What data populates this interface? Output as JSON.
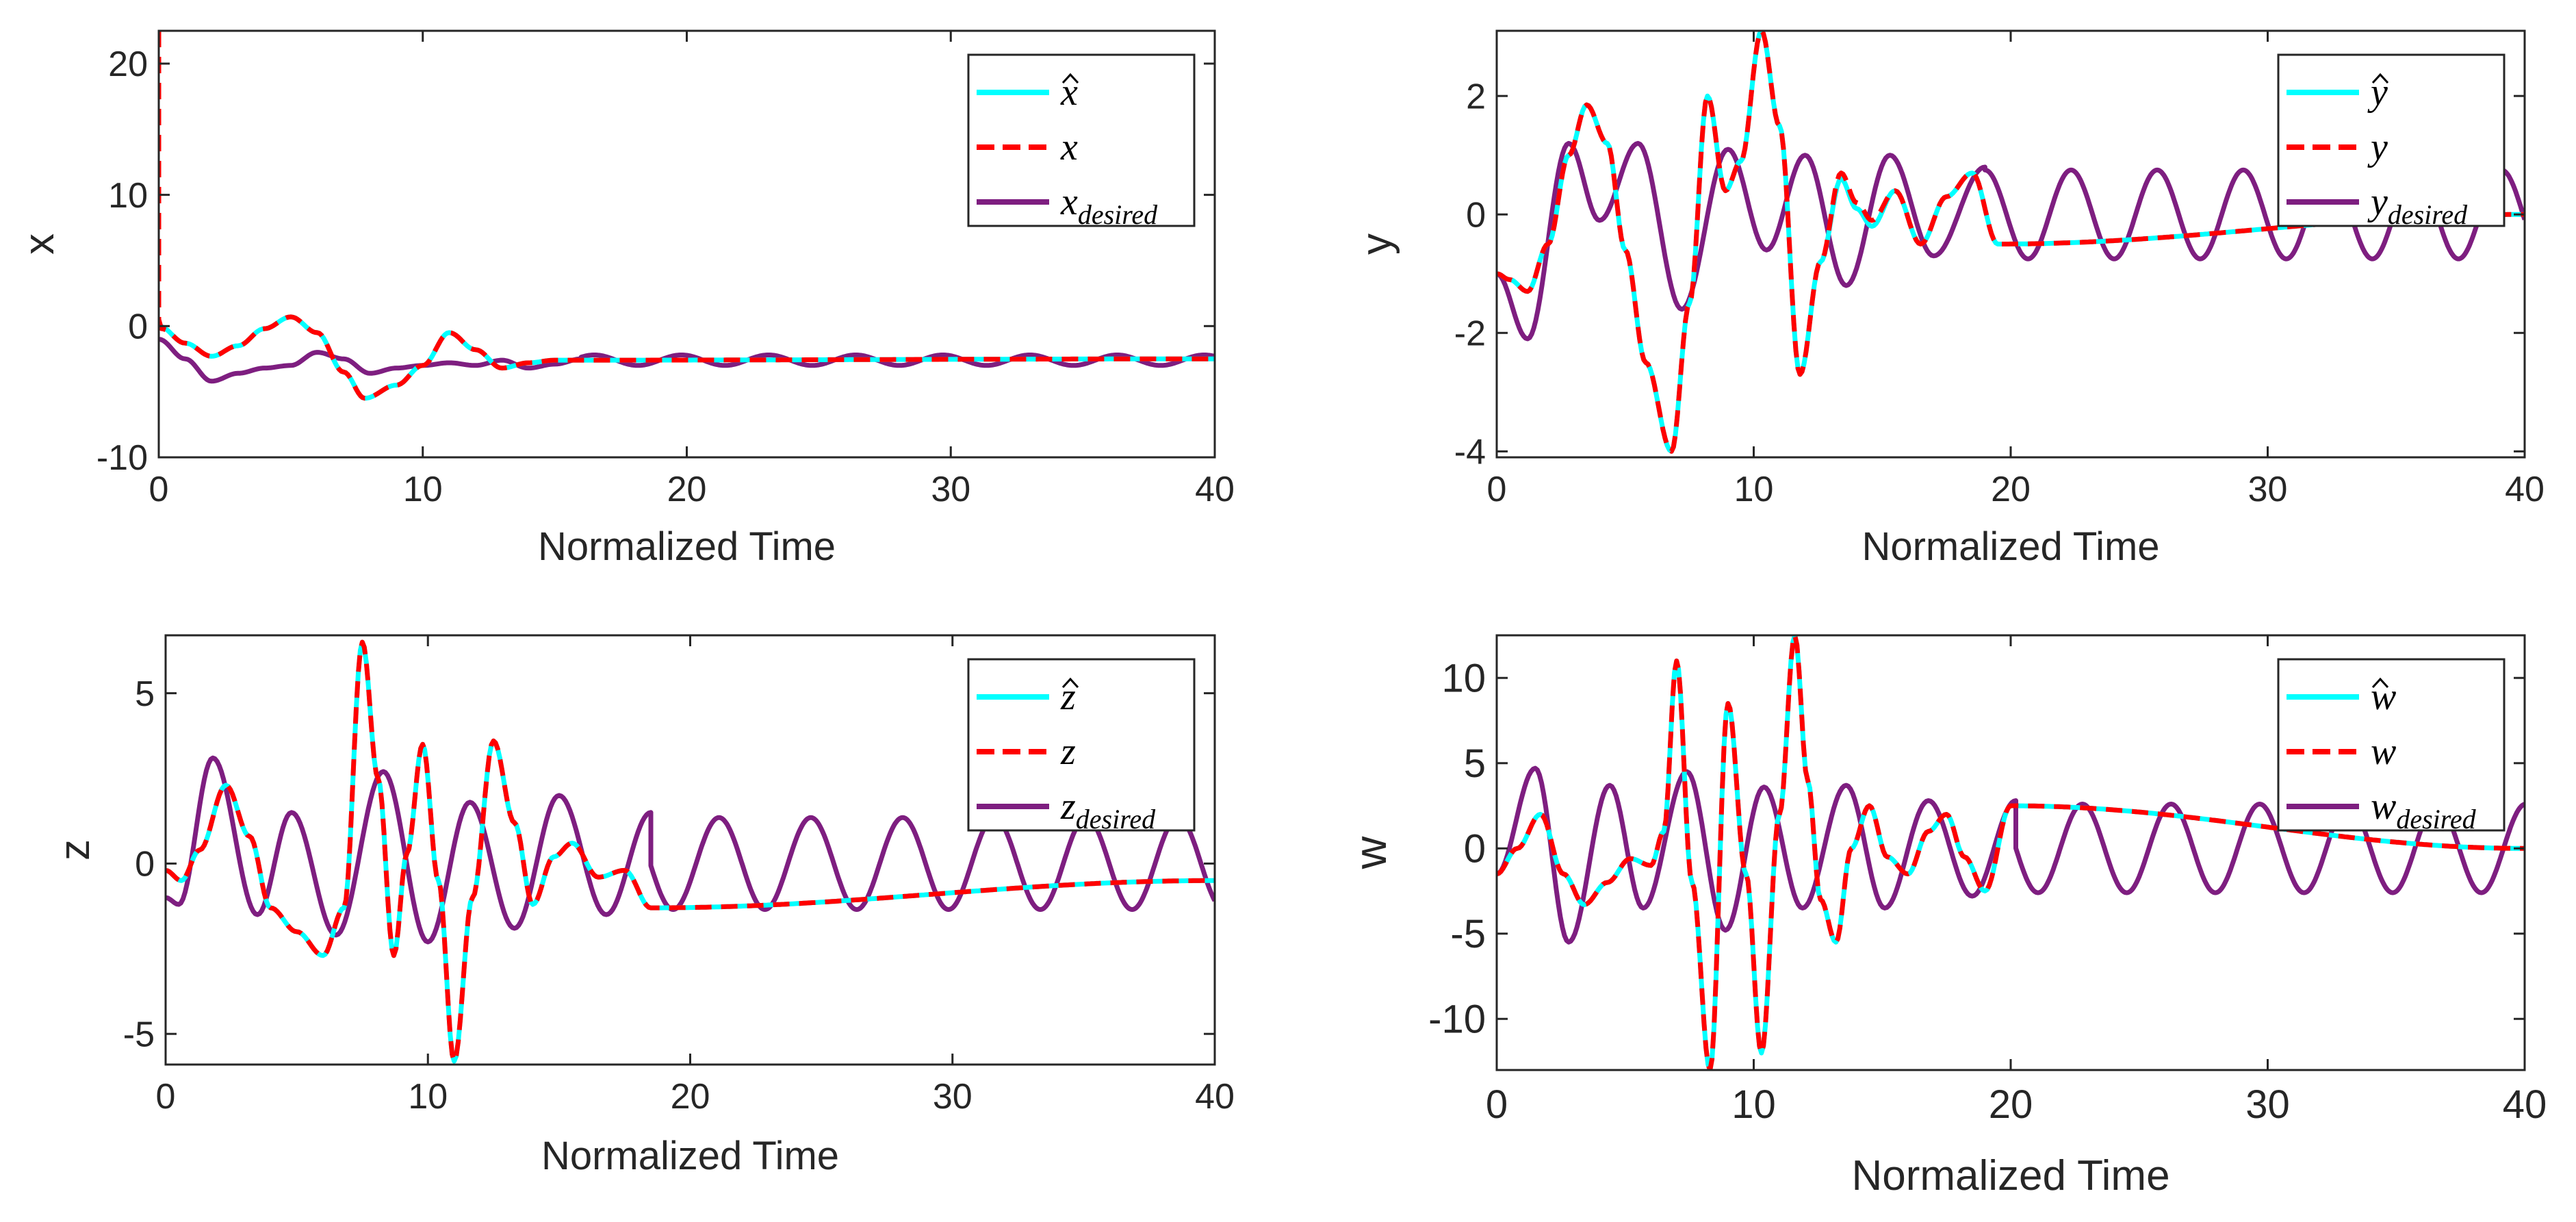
{
  "figure": {
    "colors": {
      "estimate": "#00FFFF",
      "actual": "#FF0000",
      "desired": "#7E1E80",
      "axis": "#262626"
    }
  },
  "chart_data": [
    {
      "id": "x",
      "type": "line",
      "xlabel": "Normalized Time",
      "ylabel": "x",
      "xlim": [
        0,
        40
      ],
      "ylim": [
        -10,
        22.5
      ],
      "xticks": [
        "0",
        "10",
        "20",
        "30",
        "40"
      ],
      "xtick_values": [
        0,
        10,
        20,
        30,
        40
      ],
      "yticks": [
        "-10",
        "0",
        "10",
        "20"
      ],
      "ytick_values": [
        -10,
        0,
        10,
        20
      ],
      "legend": [
        {
          "base": "x",
          "sub": "",
          "hat": true,
          "style": "estimate"
        },
        {
          "base": "x",
          "sub": "",
          "hat": false,
          "style": "actual"
        },
        {
          "base": "x",
          "sub": "desired",
          "hat": false,
          "style": "desired"
        }
      ],
      "legend_location": "top-right",
      "series": [
        {
          "name": "x estimate",
          "style": "estimate",
          "x": [
            0,
            1,
            2,
            3,
            4,
            5,
            6,
            7,
            7.8,
            9,
            10,
            11,
            12,
            13,
            14,
            15,
            40
          ],
          "y": [
            0,
            -1.3,
            -2.3,
            -1.5,
            -0.2,
            0.7,
            -0.5,
            -3.5,
            -5.5,
            -4.5,
            -3,
            -0.5,
            -1.8,
            -3.2,
            -2.8,
            -2.6,
            -2.5
          ]
        },
        {
          "name": "x actual",
          "style": "actual",
          "x": [
            0,
            0,
            0.1,
            1,
            2,
            3,
            4,
            5,
            6,
            7,
            7.8,
            9,
            10,
            11,
            12,
            13,
            14,
            15,
            40
          ],
          "y": [
            22.5,
            0.5,
            -0.2,
            -1.3,
            -2.3,
            -1.5,
            -0.2,
            0.7,
            -0.5,
            -3.5,
            -5.5,
            -4.5,
            -3,
            -0.5,
            -1.8,
            -3.2,
            -2.8,
            -2.6,
            -2.5
          ]
        },
        {
          "name": "x desired",
          "style": "desired",
          "x": [
            0,
            1,
            2,
            3,
            4,
            5,
            6,
            7,
            8,
            9,
            10,
            11,
            12,
            13,
            14,
            15,
            16,
            40
          ],
          "y": [
            -1,
            -2.5,
            -4.2,
            -3.6,
            -3.2,
            -3,
            -2,
            -2.5,
            -3.6,
            -3.2,
            -3,
            -2.8,
            -3,
            -2.6,
            -3.2,
            -2.9,
            -2.5,
            -2.5
          ],
          "oscillation": {
            "start": 16,
            "end": 40,
            "center": -2.6,
            "amplitude": 0.4,
            "period": 3.3,
            "phase": 0
          }
        }
      ]
    },
    {
      "id": "y",
      "type": "line",
      "xlabel": "Normalized Time",
      "ylabel": "y",
      "xlim": [
        0,
        40
      ],
      "ylim": [
        -4.1,
        3.1
      ],
      "xticks": [
        "0",
        "10",
        "20",
        "30",
        "40"
      ],
      "xtick_values": [
        0,
        10,
        20,
        30,
        40
      ],
      "yticks": [
        "-4",
        "-2",
        "0",
        "2"
      ],
      "ytick_values": [
        -4,
        -2,
        0,
        2
      ],
      "legend": [
        {
          "base": "y",
          "sub": "",
          "hat": true,
          "style": "estimate"
        },
        {
          "base": "y",
          "sub": "",
          "hat": false,
          "style": "actual"
        },
        {
          "base": "y",
          "sub": "desired",
          "hat": false,
          "style": "desired"
        }
      ],
      "legend_location": "top-right",
      "series": [
        {
          "name": "y estimate",
          "style": "estimate",
          "x": [
            0,
            0.5,
            1.2,
            2,
            2.8,
            3.5,
            4.3,
            5,
            5.8,
            6.8,
            7.5,
            8.2,
            8.9,
            9.5,
            10.3,
            11,
            11.8,
            12.6,
            13.4,
            14,
            14.6,
            15.5,
            16.5,
            17.5,
            18.5,
            19.5,
            40
          ],
          "y": [
            -1,
            -1.1,
            -1.3,
            -0.5,
            1,
            1.85,
            1.2,
            -0.6,
            -2.5,
            -4,
            -1.5,
            2.0,
            0.4,
            0.9,
            3.1,
            1.5,
            -2.7,
            -0.8,
            0.6,
            0.1,
            -0.2,
            0.4,
            -0.5,
            0.3,
            0.7,
            -0.5,
            0
          ]
        },
        {
          "name": "y actual",
          "style": "actual",
          "x": [
            0,
            0.5,
            1.2,
            2,
            2.8,
            3.5,
            4.3,
            5,
            5.8,
            6.8,
            7.5,
            8.2,
            8.9,
            9.5,
            10.3,
            11,
            11.8,
            12.6,
            13.4,
            14,
            14.6,
            15.5,
            16.5,
            17.5,
            18.5,
            19.5,
            40
          ],
          "y": [
            -1,
            -1.1,
            -1.3,
            -0.5,
            1,
            1.85,
            1.2,
            -0.6,
            -2.5,
            -4,
            -1.5,
            2.0,
            0.4,
            0.9,
            3.1,
            1.5,
            -2.7,
            -0.8,
            0.7,
            0.2,
            -0.1,
            0.4,
            -0.5,
            0.3,
            0.7,
            -0.5,
            0
          ]
        },
        {
          "name": "y desired",
          "style": "desired",
          "x": [
            0,
            1.2,
            2.8,
            4,
            5.5,
            7.2,
            9,
            10.5,
            12,
            13.6,
            15.3,
            17,
            19
          ],
          "y": [
            -1,
            -2.1,
            1.2,
            -0.1,
            1.2,
            -1.6,
            1.1,
            -0.6,
            1,
            -1.2,
            1,
            -0.7,
            0.8
          ],
          "oscillation": {
            "start": 19,
            "end": 40,
            "center": 0,
            "amplitude": 0.75,
            "period": 3.35,
            "phase": 19
          }
        }
      ]
    },
    {
      "id": "z",
      "type": "line",
      "xlabel": "Normalized Time",
      "ylabel": "z",
      "xlim": [
        0,
        40
      ],
      "ylim": [
        -5.9,
        6.7
      ],
      "xticks": [
        "0",
        "10",
        "20",
        "30",
        "40"
      ],
      "xtick_values": [
        0,
        10,
        20,
        30,
        40
      ],
      "yticks": [
        "-5",
        "0",
        "5"
      ],
      "ytick_values": [
        -5,
        0,
        5
      ],
      "legend": [
        {
          "base": "z",
          "sub": "",
          "hat": true,
          "style": "estimate"
        },
        {
          "base": "z",
          "sub": "",
          "hat": false,
          "style": "actual"
        },
        {
          "base": "z",
          "sub": "desired",
          "hat": false,
          "style": "desired"
        }
      ],
      "legend_location": "top-right",
      "series": [
        {
          "name": "z estimate",
          "style": "estimate",
          "x": [
            0,
            0.6,
            1.3,
            2.3,
            3.2,
            4,
            5,
            6,
            6.8,
            7.5,
            8.1,
            8.7,
            9.2,
            9.8,
            10.4,
            11,
            11.7,
            12.5,
            13.3,
            14,
            14.8,
            15.5,
            16.5,
            17.5,
            18.5,
            40
          ],
          "y": [
            -0.2,
            -0.5,
            0.4,
            2.3,
            0.8,
            -1.3,
            -2,
            -2.7,
            -1.3,
            6.5,
            2.5,
            -2.7,
            0.3,
            3.5,
            -0.5,
            -5.8,
            -1,
            3.6,
            1.2,
            -1.2,
            0.2,
            0.6,
            -0.4,
            -0.2,
            -1.3,
            -0.5
          ]
        },
        {
          "name": "z actual",
          "style": "actual",
          "x": [
            0,
            0.6,
            1.3,
            2.3,
            3.2,
            4,
            5,
            6,
            6.8,
            7.5,
            8.1,
            8.7,
            9.2,
            9.8,
            10.4,
            11,
            11.7,
            12.5,
            13.3,
            14,
            14.8,
            15.5,
            16.5,
            17.5,
            18.5,
            40
          ],
          "y": [
            -0.2,
            -0.5,
            0.4,
            2.3,
            0.8,
            -1.3,
            -2,
            -2.7,
            -1.3,
            6.5,
            2.5,
            -2.7,
            0.3,
            3.5,
            -0.5,
            -5.8,
            -1,
            3.6,
            1.2,
            -1.2,
            0.2,
            0.6,
            -0.4,
            -0.2,
            -1.3,
            -0.5
          ]
        },
        {
          "name": "z desired",
          "style": "desired",
          "x": [
            0,
            0.5,
            1.8,
            3.5,
            4.8,
            6.5,
            8.3,
            10,
            11.6,
            13.3,
            15,
            16.8,
            18.5
          ],
          "y": [
            -1,
            -1.2,
            3.1,
            -1.5,
            1.5,
            -2.1,
            2.7,
            -2.3,
            1.8,
            -1.9,
            2.0,
            -1.5,
            1.5
          ],
          "oscillation": {
            "start": 18.5,
            "end": 40,
            "center": 0,
            "amplitude": 1.35,
            "period": 3.5,
            "phase": 17.6
          }
        }
      ]
    },
    {
      "id": "w",
      "type": "line",
      "xlabel": "Normalized Time",
      "ylabel": "w",
      "xlim": [
        0,
        40
      ],
      "ylim": [
        -13,
        12.5
      ],
      "xticks": [
        "0",
        "10",
        "20",
        "30",
        "40"
      ],
      "xtick_values": [
        0,
        10,
        20,
        30,
        40
      ],
      "yticks": [
        "-10",
        "-5",
        "0",
        "5",
        "10"
      ],
      "ytick_values": [
        -10,
        -5,
        0,
        5,
        10
      ],
      "legend": [
        {
          "base": "w",
          "sub": "",
          "hat": true,
          "style": "estimate"
        },
        {
          "base": "w",
          "sub": "",
          "hat": false,
          "style": "actual"
        },
        {
          "base": "w",
          "sub": "desired",
          "hat": false,
          "style": "desired"
        }
      ],
      "legend_location": "top-right",
      "series": [
        {
          "name": "w estimate",
          "style": "estimate",
          "x": [
            0,
            0.8,
            1.7,
            2.6,
            3.4,
            4.3,
            5.2,
            6,
            6.5,
            7,
            7.6,
            8.3,
            9,
            9.7,
            10.3,
            11,
            11.6,
            12.1,
            12.6,
            13.2,
            13.8,
            14.5,
            15.2,
            16,
            16.8,
            17.5,
            18.2,
            19,
            20,
            40
          ],
          "y": [
            -1.5,
            0,
            2,
            -1.5,
            -3.3,
            -2,
            -0.6,
            -1,
            1,
            11,
            -2,
            -13,
            8.5,
            -1.5,
            -12,
            2,
            12.5,
            4,
            -3,
            -5.5,
            0,
            2.5,
            -0.5,
            -1.5,
            1,
            2,
            -0.5,
            -2.5,
            2.5,
            0
          ]
        },
        {
          "name": "w actual",
          "style": "actual",
          "x": [
            0,
            0.8,
            1.7,
            2.6,
            3.4,
            4.3,
            5.2,
            6,
            6.5,
            7,
            7.6,
            8.3,
            9,
            9.7,
            10.3,
            11,
            11.6,
            12.1,
            12.6,
            13.2,
            13.8,
            14.5,
            15.2,
            16,
            16.8,
            17.5,
            18.2,
            19,
            20,
            40
          ],
          "y": [
            -1.5,
            0,
            2,
            -1.5,
            -3.3,
            -2,
            -0.6,
            -1,
            1,
            11,
            -2,
            -13,
            8.5,
            -1.5,
            -12,
            2,
            12.5,
            4,
            -3,
            -5.5,
            0,
            2.5,
            -0.5,
            -1.5,
            1,
            2,
            -0.5,
            -2.5,
            2.5,
            0
          ]
        },
        {
          "name": "w desired",
          "style": "desired",
          "x": [
            0,
            1.5,
            2.8,
            4.4,
            5.7,
            7.4,
            8.9,
            10.4,
            11.9,
            13.6,
            15.1,
            16.8,
            18.5,
            20.2
          ],
          "y": [
            -1.5,
            4.7,
            -5.5,
            3.7,
            -3.5,
            4.5,
            -4.8,
            3.6,
            -3.5,
            3.7,
            -3.5,
            2.8,
            -2.8,
            2.8
          ],
          "oscillation": {
            "start": 20.2,
            "end": 40,
            "center": 0,
            "amplitude": 2.6,
            "period": 3.45,
            "phase": 19.34
          }
        }
      ]
    }
  ]
}
